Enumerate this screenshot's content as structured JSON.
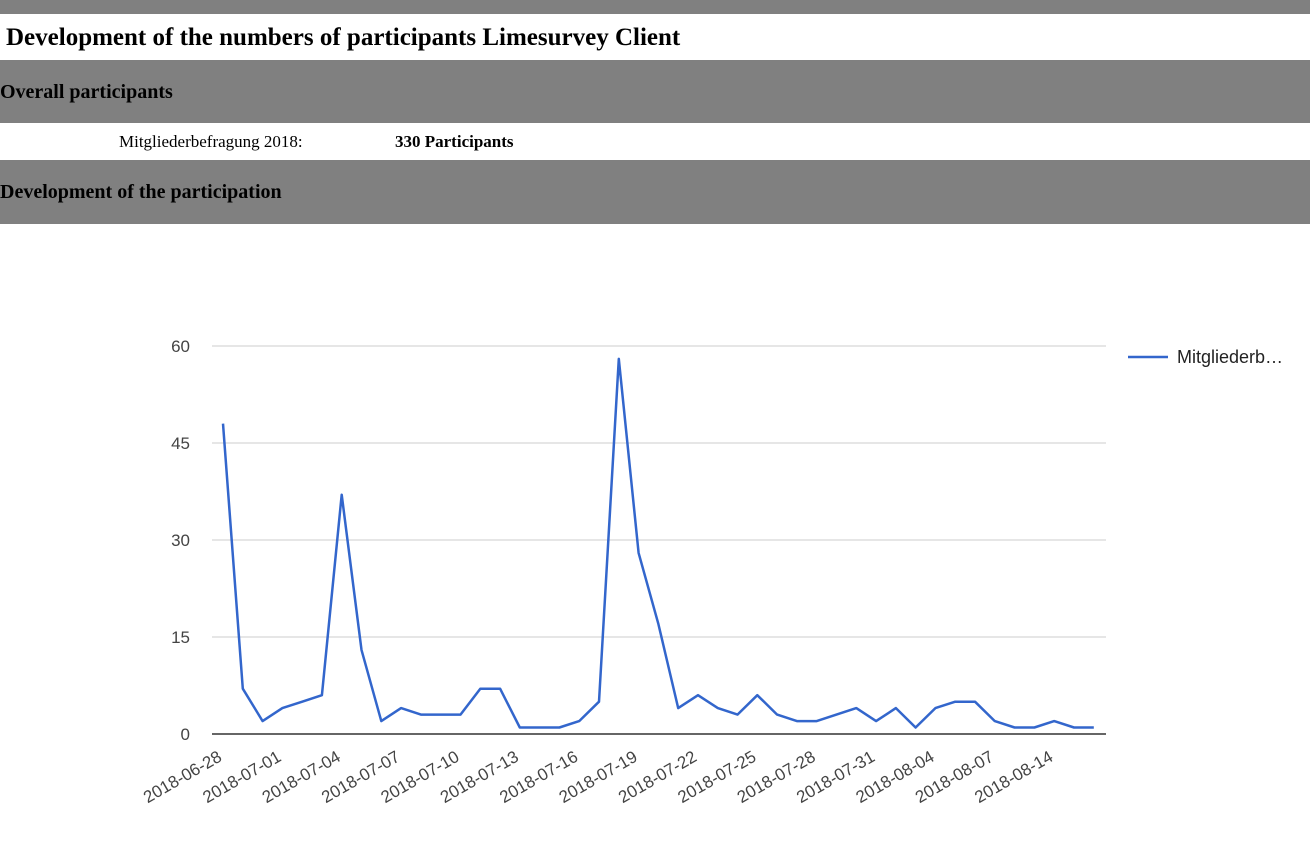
{
  "page": {
    "title": "Development of the numbers of participants Limesurvey Client"
  },
  "sections": {
    "overall": "Overall participants",
    "development": "Development of the participation"
  },
  "survey": {
    "label": "Mitgliederbefragung 2018:",
    "participants": "330 Participants"
  },
  "colors": {
    "header_bg": "#808080",
    "line": "#3366cc",
    "grid": "#cccccc",
    "baseline": "#333333",
    "axis_text": "#444444"
  },
  "chart_data": {
    "type": "line",
    "ylim": [
      0,
      60
    ],
    "yticks": [
      0,
      15,
      30,
      45,
      60
    ],
    "xtick_labels": [
      "2018-06-28",
      "2018-07-01",
      "2018-07-04",
      "2018-07-07",
      "2018-07-10",
      "2018-07-13",
      "2018-07-16",
      "2018-07-19",
      "2018-07-22",
      "2018-07-25",
      "2018-07-28",
      "2018-07-31",
      "2018-08-04",
      "2018-08-07",
      "2018-08-14"
    ],
    "legend_position": "right",
    "grid": true,
    "series": [
      {
        "name": "Mitgliederb…",
        "values": [
          48,
          7,
          2,
          4,
          5,
          6,
          37,
          13,
          2,
          4,
          3,
          3,
          3,
          7,
          7,
          1,
          1,
          1,
          2,
          5,
          58,
          28,
          17,
          4,
          6,
          4,
          3,
          6,
          3,
          2,
          2,
          3,
          4,
          2,
          4,
          1,
          4,
          5,
          5,
          2,
          1,
          1,
          2,
          1,
          1
        ]
      }
    ]
  }
}
